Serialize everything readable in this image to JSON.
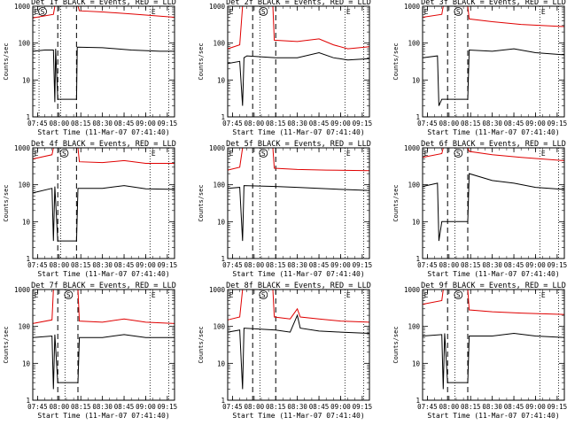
{
  "figure": {
    "xtick_labels": [
      "07:45",
      "08:00",
      "08:15",
      "08:30",
      "08:45",
      "09:00",
      "09:15"
    ],
    "ytick_labels": [
      "1",
      "10",
      "100",
      "1000"
    ],
    "xlabel": "Start Time (11-Mar-07 07:41:40)",
    "ylabel": "Counts/sec",
    "marker_labels": {
      "s": "S",
      "e": "E"
    },
    "colors": {
      "events": "#000000",
      "lld": "#e00000",
      "axes": "#000000",
      "background": "#ffffff"
    }
  },
  "chart_data": [
    {
      "type": "line",
      "title": "Det 1f BLACK = Events, RED = LLD",
      "xlabel": "Start Time (11-Mar-07 07:41:40)",
      "ylabel": "Counts/sec",
      "x_range": [
        "07:41:40",
        "09:20"
      ],
      "y_scale": "log",
      "ylim": [
        1,
        1000
      ],
      "vertical_lines": {
        "dotted": [
          "07:46",
          "08:01",
          "09:03",
          "09:16"
        ],
        "dashed": [
          "07:59",
          "08:12"
        ]
      },
      "series": [
        {
          "name": "Events",
          "color": "#000000",
          "points": [
            [
              "07:41:40",
              60
            ],
            [
              "07:50",
              65
            ],
            [
              "07:56",
              65
            ],
            [
              "07:57",
              2.5
            ],
            [
              "07:57:30",
              70
            ],
            [
              "07:59",
              3
            ],
            [
              "08:12",
              3
            ],
            [
              "08:12:30",
              78
            ],
            [
              "08:30",
              75
            ],
            [
              "08:50",
              65
            ],
            [
              "09:10",
              60
            ],
            [
              "09:20",
              60
            ]
          ]
        },
        {
          "name": "LLD",
          "color": "#e00000",
          "points": [
            [
              "07:41:40",
              480
            ],
            [
              "07:56",
              600
            ],
            [
              "07:57",
              1000
            ],
            [
              "08:13",
              1000
            ],
            [
              "08:14",
              750
            ],
            [
              "08:30",
              700
            ],
            [
              "08:50",
              620
            ],
            [
              "09:20",
              500
            ]
          ]
        }
      ]
    },
    {
      "type": "line",
      "title": "Det 2f BLACK = Events, RED = LLD",
      "xlabel": "Start Time (11-Mar-07 07:41:40)",
      "ylabel": "Counts/sec",
      "x_range": [
        "07:41:40",
        "09:20"
      ],
      "y_scale": "log",
      "ylim": [
        1,
        1000
      ],
      "vertical_lines": {
        "dotted": [
          "08:04",
          "09:03",
          "09:16"
        ],
        "dashed": [
          "07:59",
          "08:15"
        ]
      },
      "series": [
        {
          "name": "Events",
          "color": "#000000",
          "points": [
            [
              "07:41:40",
              28
            ],
            [
              "07:50",
              32
            ],
            [
              "07:52",
              2
            ],
            [
              "07:53",
              40
            ],
            [
              "07:55",
              45
            ],
            [
              "08:15",
              40
            ],
            [
              "08:30",
              40
            ],
            [
              "08:45",
              55
            ],
            [
              "08:55",
              40
            ],
            [
              "09:05",
              35
            ],
            [
              "09:20",
              38
            ]
          ]
        },
        {
          "name": "LLD",
          "color": "#e00000",
          "points": [
            [
              "07:41:40",
              70
            ],
            [
              "07:50",
              90
            ],
            [
              "07:52",
              1000
            ],
            [
              "08:13",
              1000
            ],
            [
              "08:14",
              120
            ],
            [
              "08:30",
              110
            ],
            [
              "08:45",
              130
            ],
            [
              "08:55",
              90
            ],
            [
              "09:05",
              70
            ],
            [
              "09:20",
              80
            ]
          ]
        }
      ]
    },
    {
      "type": "line",
      "title": "Det 3f BLACK = Events, RED = LLD",
      "xlabel": "Start Time (11-Mar-07 07:41:40)",
      "ylabel": "Counts/sec",
      "x_range": [
        "07:41:40",
        "09:20"
      ],
      "y_scale": "log",
      "ylim": [
        1,
        1000
      ],
      "vertical_lines": {
        "dotted": [
          "08:04",
          "09:03",
          "09:16"
        ],
        "dashed": [
          "07:59",
          "08:13"
        ]
      },
      "series": [
        {
          "name": "Events",
          "color": "#000000",
          "points": [
            [
              "07:41:40",
              40
            ],
            [
              "07:52",
              45
            ],
            [
              "07:53",
              2
            ],
            [
              "07:55",
              3
            ],
            [
              "08:13",
              3
            ],
            [
              "08:14",
              65
            ],
            [
              "08:30",
              60
            ],
            [
              "08:45",
              70
            ],
            [
              "09:00",
              55
            ],
            [
              "09:20",
              48
            ]
          ]
        },
        {
          "name": "LLD",
          "color": "#e00000",
          "points": [
            [
              "07:41:40",
              500
            ],
            [
              "07:55",
              600
            ],
            [
              "07:56",
              1000
            ],
            [
              "08:13",
              1000
            ],
            [
              "08:14",
              450
            ],
            [
              "08:30",
              380
            ],
            [
              "08:50",
              320
            ],
            [
              "09:20",
              280
            ]
          ]
        }
      ]
    },
    {
      "type": "line",
      "title": "Det 4f BLACK = Events, RED = LLD",
      "xlabel": "Start Time (11-Mar-07 07:41:40)",
      "ylabel": "Counts/sec",
      "x_range": [
        "07:41:40",
        "09:20"
      ],
      "y_scale": "log",
      "ylim": [
        1,
        1000
      ],
      "vertical_lines": {
        "dotted": [
          "08:01",
          "09:03",
          "09:16"
        ],
        "dashed": [
          "07:59",
          "08:12"
        ]
      },
      "series": [
        {
          "name": "Events",
          "color": "#000000",
          "points": [
            [
              "07:41:40",
              60
            ],
            [
              "07:55",
              80
            ],
            [
              "07:56",
              3
            ],
            [
              "07:57",
              90
            ],
            [
              "07:59",
              3
            ],
            [
              "08:12",
              3
            ],
            [
              "08:13",
              80
            ],
            [
              "08:30",
              80
            ],
            [
              "08:45",
              95
            ],
            [
              "09:00",
              78
            ],
            [
              "09:20",
              75
            ]
          ]
        },
        {
          "name": "LLD",
          "color": "#e00000",
          "points": [
            [
              "07:41:40",
              500
            ],
            [
              "07:55",
              650
            ],
            [
              "07:56",
              1000
            ],
            [
              "08:13",
              1000
            ],
            [
              "08:14",
              420
            ],
            [
              "08:30",
              400
            ],
            [
              "08:45",
              450
            ],
            [
              "09:00",
              380
            ],
            [
              "09:20",
              380
            ]
          ]
        }
      ]
    },
    {
      "type": "line",
      "title": "Det 5f BLACK = Events, RED = LLD",
      "xlabel": "Start Time (11-Mar-07 07:41:40)",
      "ylabel": "Counts/sec",
      "x_range": [
        "07:41:40",
        "09:20"
      ],
      "y_scale": "log",
      "ylim": [
        1,
        1000
      ],
      "vertical_lines": {
        "dotted": [
          "08:04",
          "09:03",
          "09:16"
        ],
        "dashed": [
          "07:59",
          "08:15"
        ]
      },
      "series": [
        {
          "name": "Events",
          "color": "#000000",
          "points": [
            [
              "07:41:40",
              80
            ],
            [
              "07:50",
              85
            ],
            [
              "07:52",
              3
            ],
            [
              "07:53",
              95
            ],
            [
              "08:15",
              90
            ],
            [
              "08:30",
              85
            ],
            [
              "08:45",
              80
            ],
            [
              "09:00",
              75
            ],
            [
              "09:20",
              70
            ]
          ]
        },
        {
          "name": "LLD",
          "color": "#e00000",
          "points": [
            [
              "07:41:40",
              250
            ],
            [
              "07:50",
              300
            ],
            [
              "07:52",
              1000
            ],
            [
              "08:13",
              1000
            ],
            [
              "08:14",
              280
            ],
            [
              "08:30",
              260
            ],
            [
              "08:50",
              250
            ],
            [
              "09:20",
              240
            ]
          ]
        }
      ]
    },
    {
      "type": "line",
      "title": "Det 6f BLACK = Events, RED = LLD",
      "xlabel": "Start Time (11-Mar-07 07:41:40)",
      "ylabel": "Counts/sec",
      "x_range": [
        "07:41:40",
        "09:20"
      ],
      "y_scale": "log",
      "ylim": [
        1,
        1000
      ],
      "vertical_lines": {
        "dotted": [
          "08:04",
          "09:03",
          "09:16"
        ],
        "dashed": [
          "07:59",
          "08:13"
        ]
      },
      "series": [
        {
          "name": "Events",
          "color": "#000000",
          "points": [
            [
              "07:41:40",
              90
            ],
            [
              "07:52",
              110
            ],
            [
              "07:53",
              3
            ],
            [
              "07:55",
              10
            ],
            [
              "08:13",
              10
            ],
            [
              "08:14",
              200
            ],
            [
              "08:30",
              130
            ],
            [
              "08:45",
              110
            ],
            [
              "09:00",
              85
            ],
            [
              "09:20",
              75
            ]
          ]
        },
        {
          "name": "LLD",
          "color": "#e00000",
          "points": [
            [
              "07:41:40",
              550
            ],
            [
              "07:55",
              700
            ],
            [
              "07:56",
              1000
            ],
            [
              "08:13",
              1000
            ],
            [
              "08:14",
              800
            ],
            [
              "08:30",
              650
            ],
            [
              "08:50",
              550
            ],
            [
              "09:20",
              450
            ]
          ]
        }
      ]
    },
    {
      "type": "line",
      "title": "Det 7f BLACK = Events, RED = LLD",
      "xlabel": "Start Time (11-Mar-07 07:41:40)",
      "ylabel": "Counts/sec",
      "x_range": [
        "07:41:40",
        "09:20"
      ],
      "y_scale": "log",
      "ylim": [
        1,
        1000
      ],
      "vertical_lines": {
        "dotted": [
          "08:04",
          "09:03",
          "09:16"
        ],
        "dashed": [
          "07:59",
          "08:13"
        ]
      },
      "series": [
        {
          "name": "Events",
          "color": "#000000",
          "points": [
            [
              "07:41:40",
              50
            ],
            [
              "07:55",
              55
            ],
            [
              "07:56",
              2
            ],
            [
              "07:57",
              60
            ],
            [
              "07:59",
              3
            ],
            [
              "08:13",
              3
            ],
            [
              "08:14",
              50
            ],
            [
              "08:30",
              50
            ],
            [
              "08:45",
              60
            ],
            [
              "09:00",
              50
            ],
            [
              "09:20",
              50
            ]
          ]
        },
        {
          "name": "LLD",
          "color": "#e00000",
          "points": [
            [
              "07:41:40",
              120
            ],
            [
              "07:55",
              150
            ],
            [
              "07:56",
              1000
            ],
            [
              "08:13",
              1000
            ],
            [
              "08:14",
              140
            ],
            [
              "08:30",
              130
            ],
            [
              "08:45",
              160
            ],
            [
              "09:00",
              130
            ],
            [
              "09:20",
              120
            ]
          ]
        }
      ]
    },
    {
      "type": "line",
      "title": "Det 8f BLACK = Events, RED = LLD",
      "xlabel": "Start Time (11-Mar-07 07:41:40)",
      "ylabel": "Counts/sec",
      "x_range": [
        "07:41:40",
        "09:20"
      ],
      "y_scale": "log",
      "ylim": [
        1,
        1000
      ],
      "vertical_lines": {
        "dotted": [
          "08:04",
          "09:03",
          "09:16"
        ],
        "dashed": [
          "07:59",
          "08:15"
        ]
      },
      "series": [
        {
          "name": "Events",
          "color": "#000000",
          "points": [
            [
              "07:41:40",
              70
            ],
            [
              "07:50",
              80
            ],
            [
              "07:52",
              2
            ],
            [
              "07:53",
              90
            ],
            [
              "08:15",
              80
            ],
            [
              "08:25",
              70
            ],
            [
              "08:30",
              200
            ],
            [
              "08:32",
              90
            ],
            [
              "08:45",
              75
            ],
            [
              "09:00",
              70
            ],
            [
              "09:20",
              65
            ]
          ]
        },
        {
          "name": "LLD",
          "color": "#e00000",
          "points": [
            [
              "07:41:40",
              150
            ],
            [
              "07:50",
              180
            ],
            [
              "07:52",
              1000
            ],
            [
              "08:13",
              1000
            ],
            [
              "08:14",
              180
            ],
            [
              "08:25",
              160
            ],
            [
              "08:30",
              300
            ],
            [
              "08:32",
              180
            ],
            [
              "08:45",
              160
            ],
            [
              "09:00",
              140
            ],
            [
              "09:20",
              130
            ]
          ]
        }
      ]
    },
    {
      "type": "line",
      "title": "Det 9f BLACK = Events, RED = LLD",
      "xlabel": "Start Time (11-Mar-07 07:41:40)",
      "ylabel": "Counts/sec",
      "x_range": [
        "07:41:40",
        "09:20"
      ],
      "y_scale": "log",
      "ylim": [
        1,
        1000
      ],
      "vertical_lines": {
        "dotted": [
          "08:04",
          "09:03",
          "09:16"
        ],
        "dashed": [
          "07:59",
          "08:13"
        ]
      },
      "series": [
        {
          "name": "Events",
          "color": "#000000",
          "points": [
            [
              "07:41:40",
              55
            ],
            [
              "07:55",
              60
            ],
            [
              "07:56",
              2
            ],
            [
              "07:57",
              65
            ],
            [
              "07:59",
              3
            ],
            [
              "08:13",
              3
            ],
            [
              "08:14",
              55
            ],
            [
              "08:30",
              55
            ],
            [
              "08:45",
              65
            ],
            [
              "09:00",
              55
            ],
            [
              "09:20",
              50
            ]
          ]
        },
        {
          "name": "LLD",
          "color": "#e00000",
          "points": [
            [
              "07:41:40",
              400
            ],
            [
              "07:55",
              500
            ],
            [
              "07:56",
              1000
            ],
            [
              "08:13",
              1000
            ],
            [
              "08:14",
              280
            ],
            [
              "08:30",
              250
            ],
            [
              "08:50",
              230
            ],
            [
              "09:20",
              210
            ]
          ]
        }
      ]
    }
  ]
}
